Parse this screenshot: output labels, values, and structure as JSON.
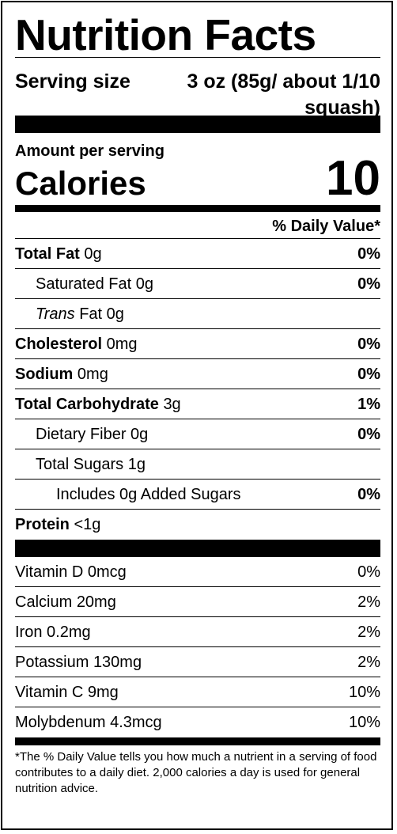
{
  "header": {
    "title": "Nutrition Facts"
  },
  "serving": {
    "label": "Serving size",
    "value": "3 oz (85g/ about 1/10 squash)"
  },
  "calories": {
    "amount_label": "Amount per serving",
    "label": "Calories",
    "value": "10"
  },
  "daily_value_header": "% Daily Value*",
  "nutrients": [
    {
      "level": 0,
      "name": "Total Fat",
      "amount": "0g",
      "dv": "0%"
    },
    {
      "level": 1,
      "name": "Saturated Fat",
      "amount": "0g",
      "dv": "0%"
    },
    {
      "level": 1,
      "italic": "Trans",
      "name": "Fat",
      "amount": "0g"
    },
    {
      "level": 0,
      "name": "Cholesterol",
      "amount": "0mg",
      "dv": "0%"
    },
    {
      "level": 0,
      "name": "Sodium",
      "amount": "0mg",
      "dv": "0%"
    },
    {
      "level": 0,
      "name": "Total Carbohydrate",
      "amount": "3g",
      "dv": "1%"
    },
    {
      "level": 1,
      "name": "Dietary Fiber",
      "amount": "0g",
      "dv": "0%"
    },
    {
      "level": 1,
      "name": "Total Sugars",
      "amount": "1g"
    },
    {
      "level": 2,
      "name": "Includes 0g Added Sugars",
      "dv": "0%"
    },
    {
      "level": 0,
      "name": "Protein",
      "amount": "<1g"
    }
  ],
  "vitamins": [
    {
      "name": "Vitamin D",
      "amount": "0mcg",
      "dv": "0%"
    },
    {
      "name": "Calcium",
      "amount": "20mg",
      "dv": "2%"
    },
    {
      "name": "Iron",
      "amount": "0.2mg",
      "dv": "2%"
    },
    {
      "name": "Potassium",
      "amount": "130mg",
      "dv": "2%"
    },
    {
      "name": "Vitamin C",
      "amount": "9mg",
      "dv": "10%"
    },
    {
      "name": "Molybdenum",
      "amount": "4.3mcg",
      "dv": "10%"
    }
  ],
  "footnote": "*The % Daily Value tells you how much a nutrient in a serving of food contributes to a daily diet. 2,000 calories a day is used for general nutrition advice."
}
